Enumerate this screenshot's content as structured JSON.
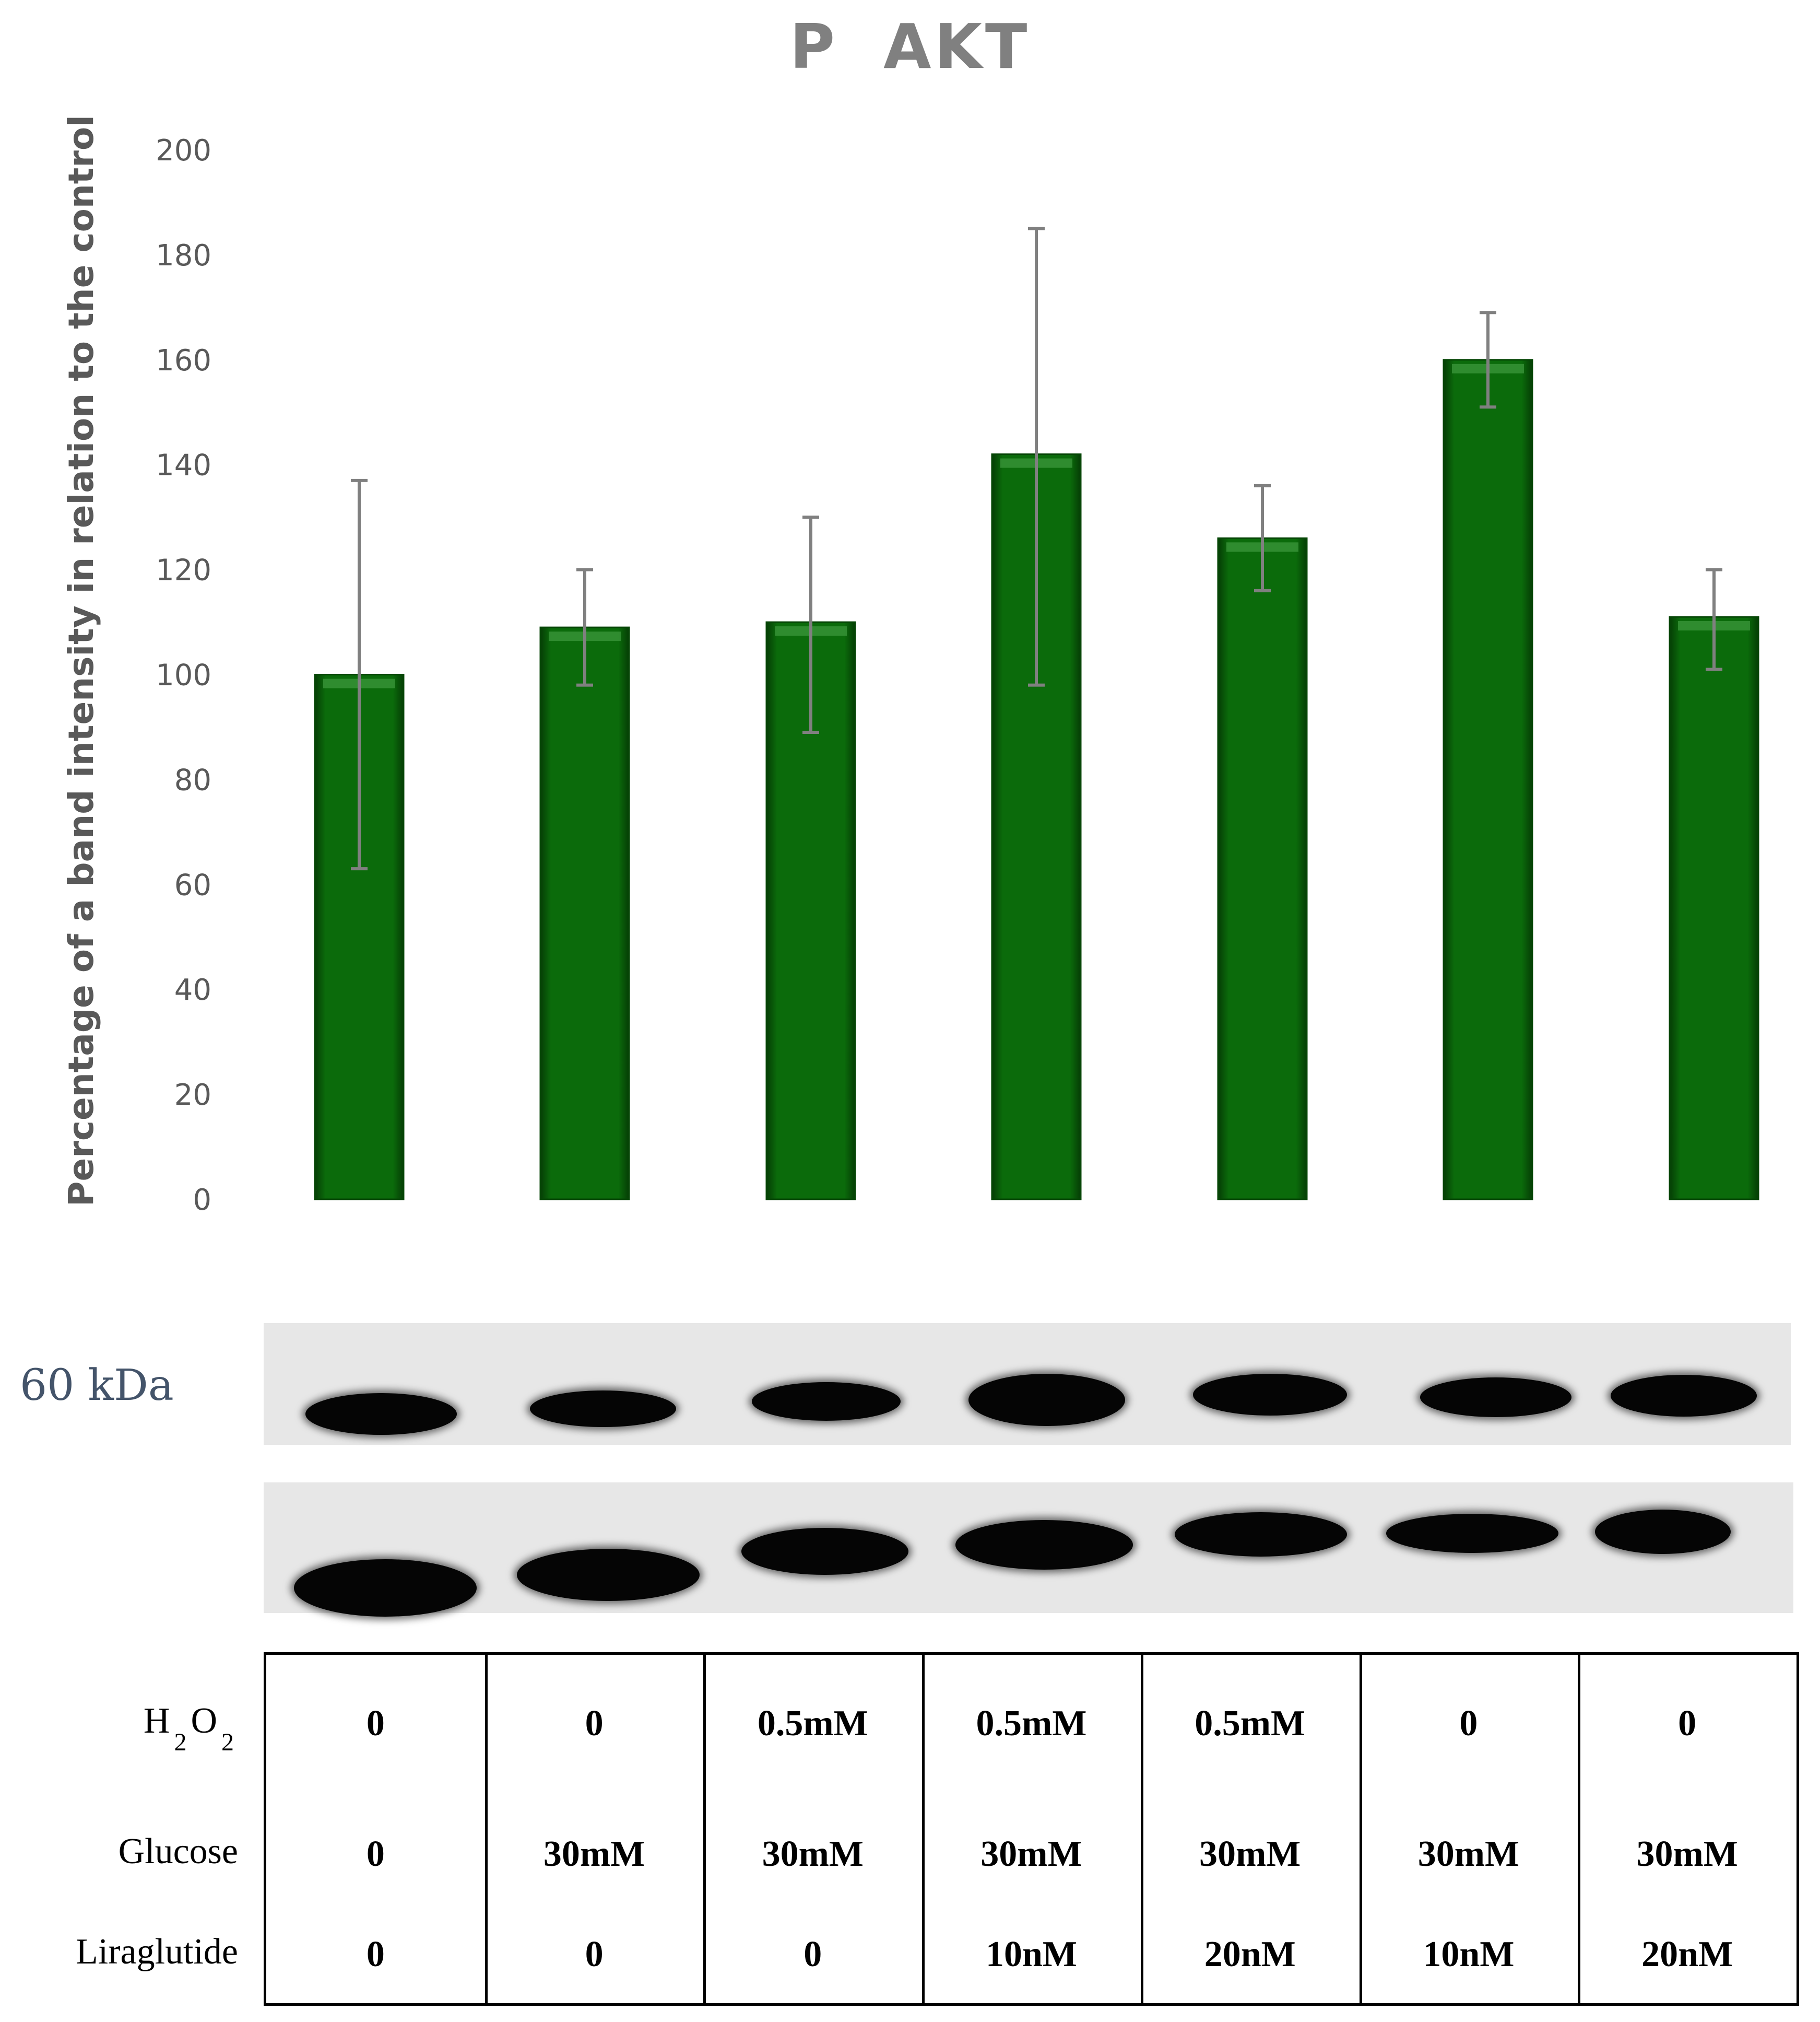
{
  "chart_data": {
    "type": "bar",
    "title": "P AKT",
    "ylabel": "Percentage of a band intensity in relation to the control",
    "ylim": [
      0,
      200
    ],
    "yticks": [
      0,
      20,
      40,
      60,
      80,
      100,
      120,
      140,
      160,
      180,
      200
    ],
    "grid": false,
    "legend": "none",
    "bar_color": "#0b6b0b",
    "error_color": "#808080",
    "values": [
      100,
      109,
      110,
      142,
      126,
      160,
      111
    ],
    "error_low": [
      63,
      98,
      89,
      98,
      116,
      151,
      101
    ],
    "error_high": [
      137,
      120,
      130,
      185,
      136,
      169,
      120
    ]
  },
  "blot": {
    "marker_label": "60 kDa",
    "band_color": "#050505",
    "background_color": "#e7e7e7"
  },
  "conditions": {
    "rows": [
      {
        "label_main": "H",
        "label_sub1": "2",
        "label_mid": "O",
        "label_sub2": "2",
        "values": [
          "0",
          "0",
          "0.5mM",
          "0.5mM",
          "0.5mM",
          "0",
          "0"
        ]
      },
      {
        "label": "Glucose",
        "values": [
          "0",
          "30mM",
          "30mM",
          "30mM",
          "30mM",
          "30mM",
          "30mM"
        ]
      },
      {
        "label": "Liraglutide",
        "values": [
          "0",
          "0",
          "0",
          "10nM",
          "20nM",
          "10nM",
          "20nM"
        ]
      }
    ]
  }
}
